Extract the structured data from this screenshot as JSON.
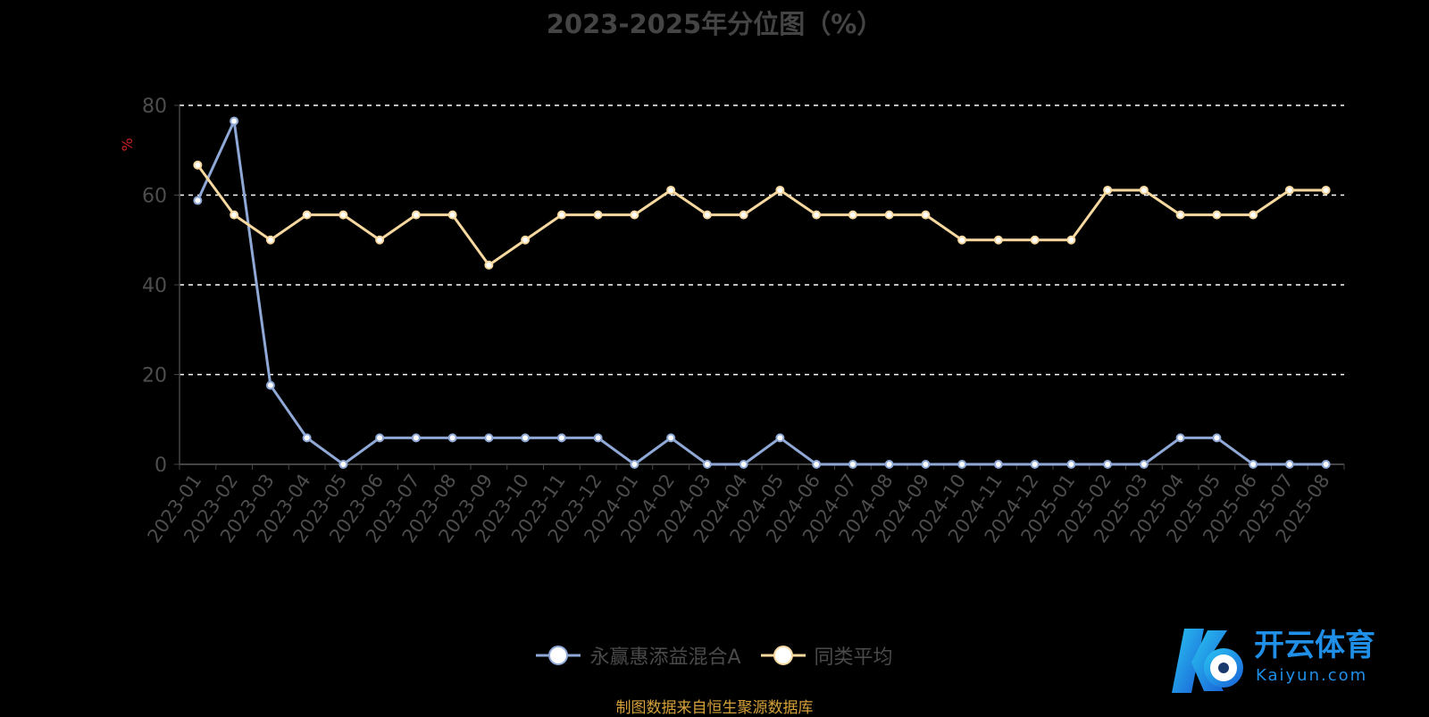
{
  "chart_data": {
    "type": "line",
    "title": "2023-2025年分位图（%）",
    "ylabel": "%",
    "ylim": [
      0,
      80
    ],
    "yticks": [
      0,
      20,
      40,
      60,
      80
    ],
    "grid": true,
    "legend_position": "bottom",
    "categories": [
      "2023-01",
      "2023-02",
      "2023-03",
      "2023-04",
      "2023-05",
      "2023-06",
      "2023-07",
      "2023-08",
      "2023-09",
      "2023-10",
      "2023-11",
      "2023-12",
      "2024-01",
      "2024-02",
      "2024-03",
      "2024-04",
      "2024-05",
      "2024-06",
      "2024-07",
      "2024-08",
      "2024-09",
      "2024-10",
      "2024-11",
      "2024-12",
      "2025-01",
      "2025-02",
      "2025-03",
      "2025-04",
      "2025-05",
      "2025-06",
      "2025-07",
      "2025-08"
    ],
    "series": [
      {
        "name": "永赢惠添益混合A",
        "color": "#8fa8d6",
        "values": [
          58.8,
          76.5,
          17.6,
          5.9,
          0,
          5.9,
          5.9,
          5.9,
          5.9,
          5.9,
          5.9,
          5.9,
          0,
          5.9,
          0,
          0,
          5.9,
          0,
          0,
          0,
          0,
          0,
          0,
          0,
          0,
          0,
          0,
          5.9,
          5.9,
          0,
          0,
          0
        ]
      },
      {
        "name": "同类平均",
        "color": "#f7d9a0",
        "values": [
          66.7,
          55.6,
          50,
          55.6,
          55.6,
          50,
          55.6,
          55.6,
          44.4,
          50,
          55.6,
          55.6,
          55.6,
          61.1,
          55.6,
          55.6,
          61.1,
          55.6,
          55.6,
          55.6,
          55.6,
          50,
          50,
          50,
          50,
          61.1,
          61.1,
          55.6,
          55.6,
          55.6,
          61.1,
          61.1
        ]
      }
    ]
  },
  "source": "制图数据来自恒生聚源数据库",
  "watermark": {
    "name": "开云体育",
    "domain": "Kaiyun.com"
  }
}
